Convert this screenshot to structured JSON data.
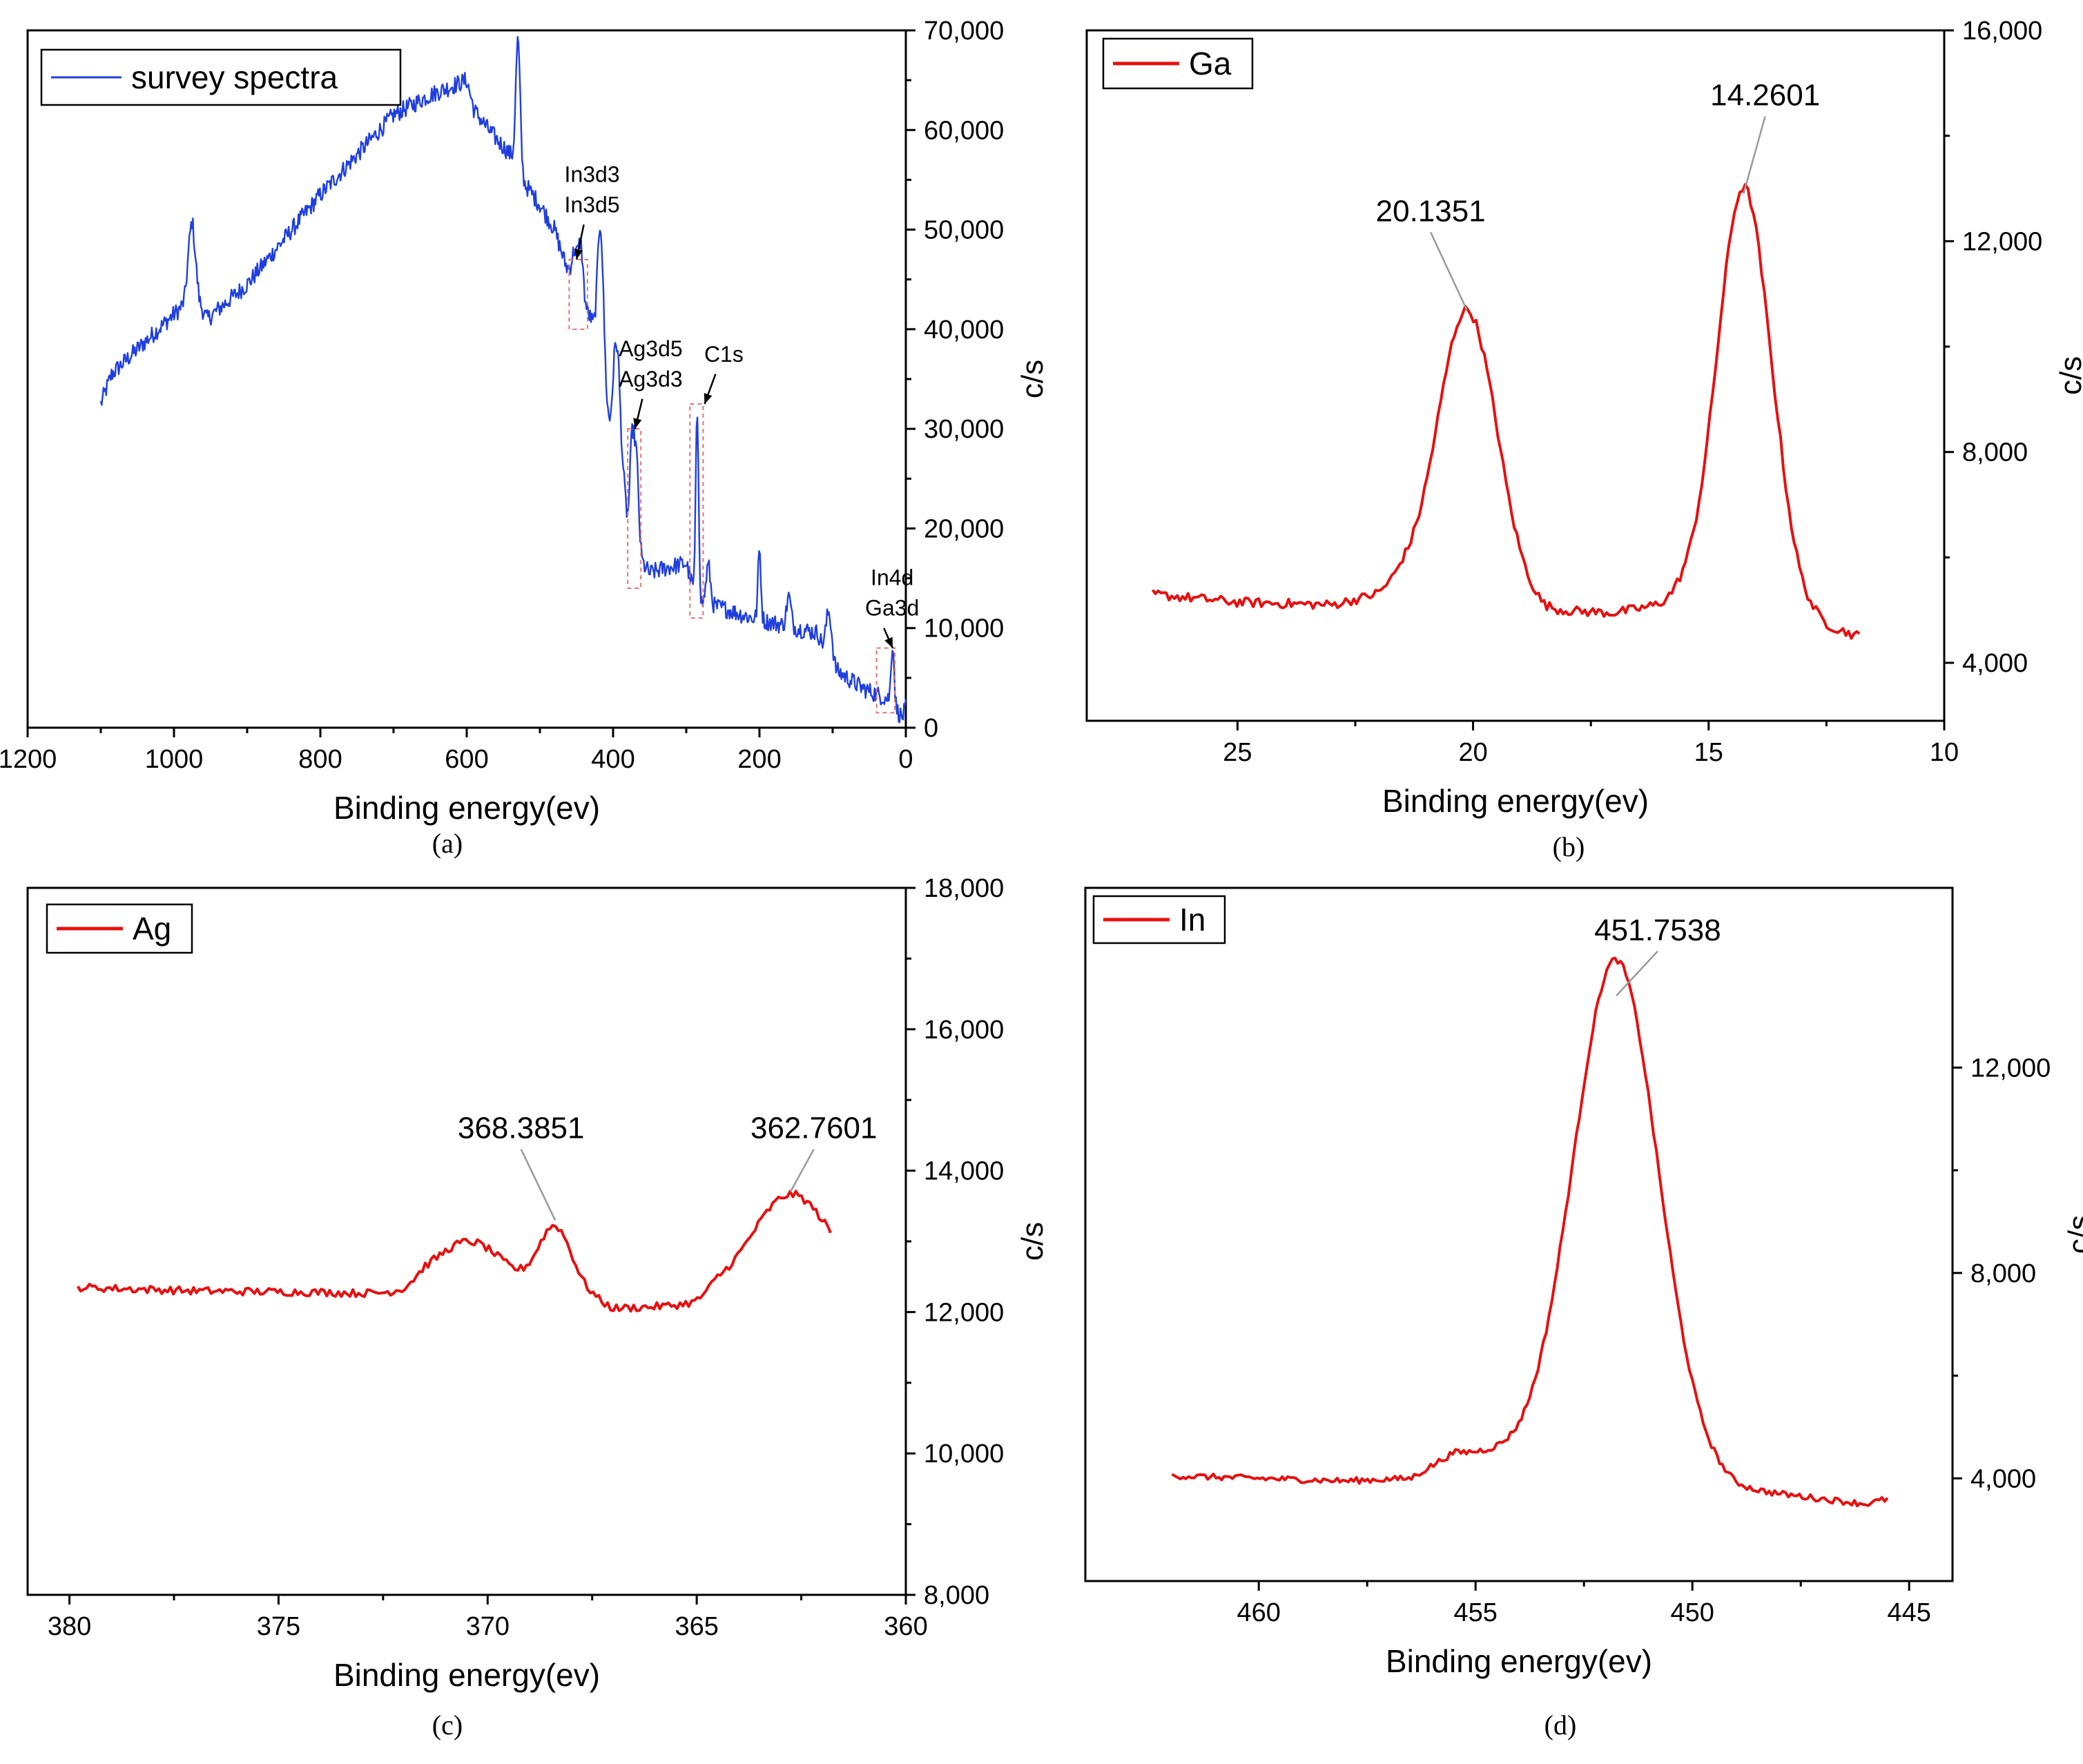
{
  "chart_data": [
    {
      "id": "a",
      "type": "line",
      "caption": "(a)",
      "xlabel": "Binding energy(ev)",
      "ylabel": "c/s",
      "xlim": [
        1200,
        0
      ],
      "ylim": [
        0,
        70000
      ],
      "xticks": [
        1200,
        1000,
        800,
        600,
        400,
        200,
        0
      ],
      "xtick_labels": [
        "1200",
        "1000",
        "800",
        "600",
        "400",
        "200",
        "0"
      ],
      "yticks": [
        0,
        10000,
        20000,
        30000,
        40000,
        50000,
        60000,
        70000
      ],
      "ytick_labels": [
        "0",
        "10,000",
        "20,000",
        "30,000",
        "40,000",
        "50,000",
        "60,000",
        "70,000"
      ],
      "yaxis_side": "right",
      "line_color": "#1f3fe0",
      "legend": "survey spectra",
      "noise": 900,
      "baseline": [
        [
          1100,
          32500
        ],
        [
          1085,
          35500
        ],
        [
          1050,
          38000
        ],
        [
          1000,
          41500
        ],
        [
          985,
          42500
        ],
        [
          975,
          46000
        ],
        [
          965,
          42500
        ],
        [
          955,
          41000
        ],
        [
          900,
          44500
        ],
        [
          850,
          49000
        ],
        [
          800,
          53500
        ],
        [
          750,
          57500
        ],
        [
          700,
          61500
        ],
        [
          650,
          63500
        ],
        [
          600,
          65000
        ],
        [
          590,
          62000
        ],
        [
          570,
          60000
        ],
        [
          540,
          57500
        ],
        [
          520,
          54500
        ],
        [
          500,
          52500
        ],
        [
          480,
          50000
        ],
        [
          465,
          46500
        ],
        [
          450,
          44000
        ],
        [
          430,
          41000
        ],
        [
          420,
          38000
        ],
        [
          405,
          30000
        ],
        [
          392,
          31000
        ],
        [
          380,
          20000
        ],
        [
          370,
          17500
        ],
        [
          350,
          15500
        ],
        [
          330,
          16000
        ],
        [
          300,
          16500
        ],
        [
          285,
          12500
        ],
        [
          250,
          12000
        ],
        [
          210,
          11000
        ],
        [
          180,
          10500
        ],
        [
          150,
          10000
        ],
        [
          120,
          9500
        ],
        [
          105,
          6000
        ],
        [
          90,
          5500
        ],
        [
          60,
          4000
        ],
        [
          35,
          3200
        ],
        [
          20,
          2800
        ],
        [
          10,
          1500
        ],
        [
          5,
          1000
        ],
        [
          0,
          2000
        ]
      ],
      "peaks": [
        [
          976,
          5000,
          5
        ],
        [
          530,
          13000,
          3
        ],
        [
          452,
          3500,
          4
        ],
        [
          444,
          5000,
          3
        ],
        [
          417,
          14000,
          4
        ],
        [
          396,
          8000,
          4
        ],
        [
          374,
          10000,
          3
        ],
        [
          368,
          9000,
          3
        ],
        [
          285,
          19000,
          2
        ],
        [
          270,
          4000,
          3
        ],
        [
          200,
          7000,
          2
        ],
        [
          160,
          3000,
          3
        ],
        [
          105,
          5500,
          4
        ],
        [
          18,
          6000,
          2
        ]
      ],
      "annotations": [
        {
          "lines": [
            "In3d3",
            "In3d5"
          ],
          "box_x": [
            460,
            435
          ],
          "box_y": [
            40000,
            47000
          ],
          "arrow_from": [
            440,
            50500
          ],
          "arrow_to": [
            450,
            47000
          ]
        },
        {
          "lines": [
            "Ag3d5",
            "Ag3d3"
          ],
          "box_x": [
            380,
            362
          ],
          "box_y": [
            14000,
            30000
          ],
          "arrow_from": [
            360,
            33000
          ],
          "arrow_to": [
            370,
            30000
          ]
        },
        {
          "lines": [
            "C1s"
          ],
          "box_x": [
            295,
            277
          ],
          "box_y": [
            11000,
            32500
          ],
          "arrow_from": [
            260,
            35500
          ],
          "arrow_to": [
            275,
            32500
          ]
        },
        {
          "lines": [
            "In4d",
            "Ga3d"
          ],
          "box_x": [
            40,
            15
          ],
          "box_y": [
            1500,
            8000
          ],
          "arrow_from": [
            30,
            10000
          ],
          "arrow_to": [
            18,
            8000
          ]
        }
      ]
    },
    {
      "id": "b",
      "type": "line",
      "caption": "(b)",
      "xlabel": "Binding energy(ev)",
      "ylabel": "c/s",
      "xlim": [
        28.2,
        10
      ],
      "ylim": [
        2900,
        16000
      ],
      "xticks": [
        25,
        20,
        15,
        10
      ],
      "xtick_labels": [
        "25",
        "20",
        "15",
        "10"
      ],
      "yticks": [
        4000,
        8000,
        12000,
        16000
      ],
      "ytick_labels": [
        "4,000",
        "8,000",
        "12,000",
        "16,000"
      ],
      "yaxis_side": "right",
      "line_color": "#e81010",
      "legend": "Ga",
      "noise": 90,
      "baseline": [
        [
          26.8,
          5300
        ],
        [
          25,
          5150
        ],
        [
          23,
          5100
        ],
        [
          22,
          5300
        ],
        [
          21.5,
          5600
        ],
        [
          19.5,
          5600
        ],
        [
          18.5,
          5000
        ],
        [
          17,
          4950
        ],
        [
          16,
          5100
        ],
        [
          15.5,
          5300
        ],
        [
          13.5,
          5500
        ],
        [
          13,
          5000
        ],
        [
          12.5,
          4700
        ],
        [
          11.8,
          4500
        ]
      ],
      "peaks": [
        [
          20.1351,
          5100,
          0.6
        ],
        [
          14.2601,
          7600,
          0.55
        ]
      ],
      "annotations": [
        {
          "label": "20.1351",
          "x": 20.1351,
          "y": 10700,
          "text_x": 20.9,
          "text_y": 12300
        },
        {
          "label": "14.2601",
          "x": 14.2601,
          "y": 12900,
          "text_x": 13.8,
          "text_y": 14500
        }
      ]
    },
    {
      "id": "c",
      "type": "line",
      "caption": "(c)",
      "xlabel": "Binding energy(ev)",
      "ylabel": "c/s",
      "xlim": [
        381,
        360
      ],
      "ylim": [
        8000,
        18000
      ],
      "xticks": [
        380,
        375,
        370,
        365,
        360
      ],
      "xtick_labels": [
        "380",
        "375",
        "370",
        "365",
        "360"
      ],
      "yticks": [
        8000,
        10000,
        12000,
        14000,
        16000,
        18000
      ],
      "ytick_labels": [
        "8,000",
        "10,000",
        "12,000",
        "14,000",
        "16,000",
        "18,000"
      ],
      "yaxis_side": "right",
      "line_color": "#e81010",
      "legend": "Ag",
      "noise": 55,
      "baseline": [
        [
          379.8,
          12350
        ],
        [
          377,
          12300
        ],
        [
          374,
          12280
        ],
        [
          372,
          12250
        ],
        [
          371.5,
          12400
        ],
        [
          367.5,
          12200
        ],
        [
          367,
          12050
        ],
        [
          365,
          12100
        ],
        [
          364.5,
          12300
        ],
        [
          361.8,
          12400
        ]
      ],
      "peaks": [
        [
          370.4,
          650,
          0.8
        ],
        [
          368.3851,
          950,
          0.4
        ],
        [
          362.7601,
          1300,
          0.9
        ]
      ],
      "annotations": [
        {
          "label": "368.3851",
          "x": 368.3851,
          "y": 13300,
          "text_x": 369.2,
          "text_y": 14400
        },
        {
          "label": "362.7601",
          "x": 362.7601,
          "y": 13700,
          "text_x": 362.2,
          "text_y": 14400
        }
      ]
    },
    {
      "id": "d",
      "type": "line",
      "caption": "(d)",
      "xlabel": "Binding energy(ev)",
      "ylabel": "c/s",
      "xlim": [
        464,
        444
      ],
      "ylim": [
        2000,
        15500
      ],
      "xticks": [
        460,
        455,
        450,
        445
      ],
      "xtick_labels": [
        "460",
        "455",
        "450",
        "445"
      ],
      "yticks": [
        4000,
        8000,
        12000
      ],
      "ytick_labels": [
        "4,000",
        "8,000",
        "12,000"
      ],
      "yaxis_side": "right",
      "line_color": "#e81010",
      "legend": "In",
      "noise": 60,
      "baseline": [
        [
          462,
          4050
        ],
        [
          458,
          3950
        ],
        [
          456.5,
          4000
        ],
        [
          455.5,
          4500
        ],
        [
          454,
          4500
        ],
        [
          453,
          4700
        ],
        [
          450.5,
          4300
        ],
        [
          449,
          3800
        ],
        [
          446,
          3500
        ],
        [
          445.5,
          3600
        ]
      ],
      "peaks": [
        [
          451.7538,
          9600,
          0.95
        ]
      ],
      "annotations": [
        {
          "label": "451.7538",
          "x": 451.7538,
          "y": 13400,
          "text_x": 450.8,
          "text_y": 14400
        }
      ]
    }
  ]
}
